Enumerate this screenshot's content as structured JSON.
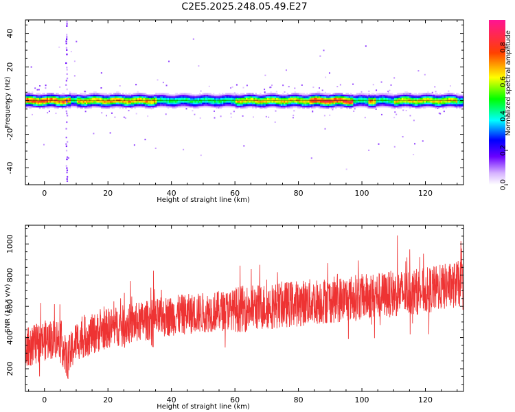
{
  "title": "C2E5.2025.248.05.49.E27",
  "chart_data": [
    {
      "type": "heatmap",
      "xlabel": "Height of straight line (km)",
      "ylabel": "Frequency (Hz)",
      "xlim": [
        -6,
        132
      ],
      "ylim": [
        -50,
        48
      ],
      "x_ticks": [
        0,
        20,
        40,
        60,
        80,
        100,
        120
      ],
      "y_ticks": [
        -40,
        -20,
        0,
        20,
        40
      ],
      "colorbar": {
        "label": "Normalized spectral amplitude",
        "range": [
          0.0,
          0.96
        ],
        "ticks": [
          0.0,
          0.2,
          0.4,
          0.6,
          0.8
        ],
        "tick_labels": [
          "0.0",
          "0.2",
          "0.4",
          "0.6",
          "0.8"
        ],
        "colormap": "white-violet-blue-cyan-green-yellow-red-magenta"
      },
      "band": {
        "center_hz": 0,
        "halfwidth_hz": 3,
        "peak_regions": [
          {
            "x": [
              83,
              97
            ],
            "amplitude": 0.9
          },
          {
            "x": [
              -6,
              8
            ],
            "amplitude": 0.85
          },
          {
            "x": [
              102,
              104
            ],
            "amplitude": 0.8
          },
          {
            "x": [
              10,
              35
            ],
            "amplitude": 0.75
          },
          {
            "x": [
              60,
              83
            ],
            "amplitude": 0.72
          },
          {
            "x": [
              110,
              130
            ],
            "amplitude": 0.7
          }
        ],
        "vertical_streak_x_km": 7
      }
    },
    {
      "type": "line",
      "xlabel": "Height of straight line (km)",
      "ylabel": "SNR (10 * v/v)",
      "xlim": [
        -6,
        132
      ],
      "ylim": [
        55,
        1120
      ],
      "x_ticks": [
        0,
        20,
        40,
        60,
        80,
        100,
        120
      ],
      "y_ticks": [
        200,
        400,
        600,
        800,
        1000
      ],
      "color": "#ee3333",
      "trend": {
        "x": [
          -6,
          0,
          5,
          7,
          10,
          20,
          40,
          60,
          80,
          100,
          120,
          132
        ],
        "y": [
          330,
          380,
          400,
          250,
          380,
          460,
          540,
          580,
          620,
          660,
          700,
          750
        ]
      },
      "spread": 130
    }
  ]
}
